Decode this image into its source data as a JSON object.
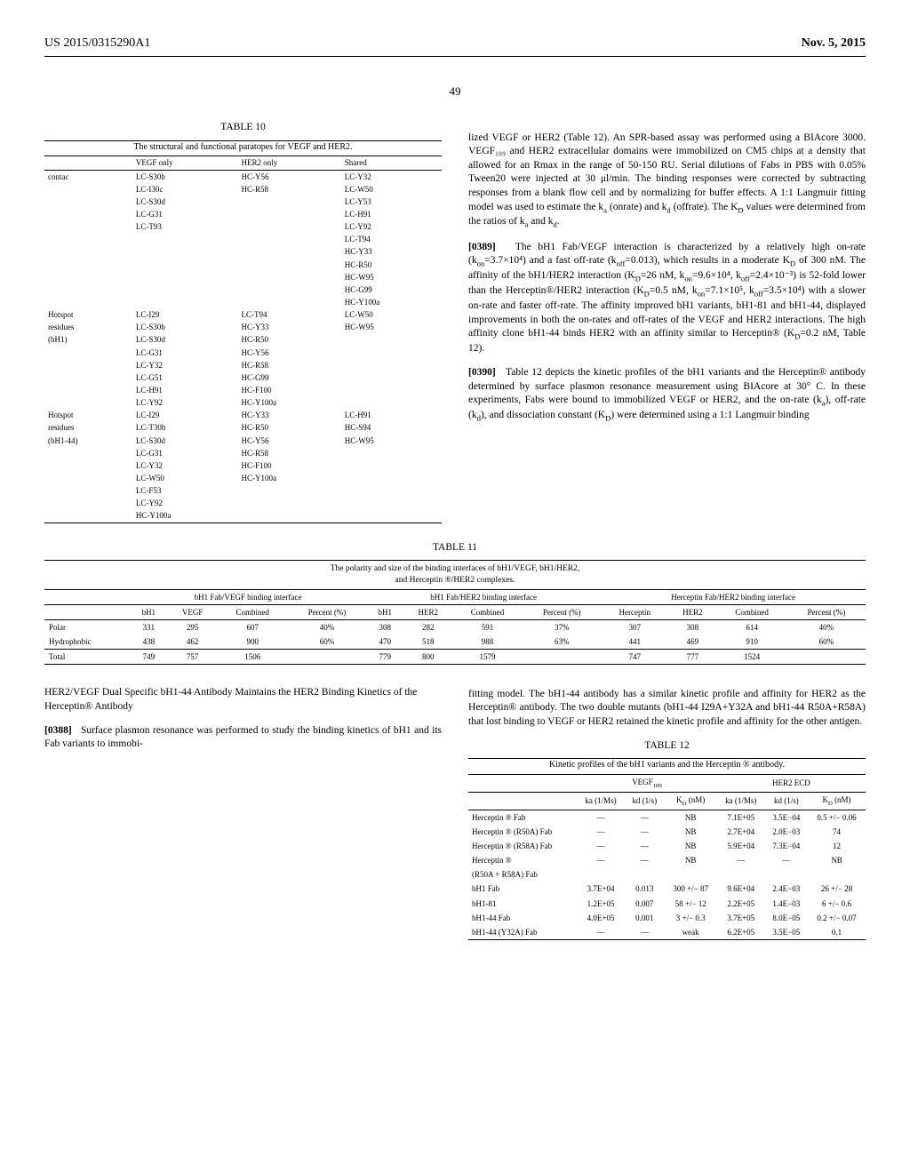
{
  "header": {
    "patent_number": "US 2015/0315290A1",
    "date": "Nov. 5, 2015"
  },
  "page_number": "49",
  "table10": {
    "title": "TABLE 10",
    "caption": "The structural and functional paratopes for VEGF and HER2.",
    "columns": [
      "",
      "VEGF only",
      "HER2 only",
      "Shared"
    ],
    "sections": [
      {
        "label": "contac",
        "rows": [
          [
            "LC-S30b",
            "HC-Y56",
            "LC-Y32"
          ],
          [
            "LC-I30c",
            "HC-R58",
            "LC-W50"
          ],
          [
            "LC-S30d",
            "",
            "LC-Y53"
          ],
          [
            "LC-G31",
            "",
            "LC-H91"
          ],
          [
            "LC-T93",
            "",
            "LC-Y92"
          ],
          [
            "",
            "",
            "LC-T94"
          ],
          [
            "",
            "",
            "HC-Y33"
          ],
          [
            "",
            "",
            "HC-R50"
          ],
          [
            "",
            "",
            "HC-W95"
          ],
          [
            "",
            "",
            "HC-G99"
          ],
          [
            "",
            "",
            "HC-Y100a"
          ]
        ]
      },
      {
        "label": "Hotspot residues (bH1)",
        "label_lines": [
          "Hotspot",
          "residues",
          "(bH1)"
        ],
        "rows": [
          [
            "LC-I29",
            "LC-T94",
            "LC-W50"
          ],
          [
            "LC-S30b",
            "HC-Y33",
            "HC-W95"
          ],
          [
            "LC-S30d",
            "HC-R50",
            ""
          ],
          [
            "LC-G31",
            "HC-Y56",
            ""
          ],
          [
            "LC-Y32",
            "HC-R58",
            ""
          ],
          [
            "LC-G51",
            "HC-G99",
            ""
          ],
          [
            "LC-H91",
            "HC-F100",
            ""
          ],
          [
            "LC-Y92",
            "HC-Y100a",
            ""
          ]
        ]
      },
      {
        "label": "Hotspot residues (bH1-44)",
        "label_lines": [
          "Hotspot",
          "residues",
          "(bH1-44)"
        ],
        "rows": [
          [
            "LC-I29",
            "HC-Y33",
            "LC-H91"
          ],
          [
            "LC-T30b",
            "HC-R50",
            "HC-S94"
          ],
          [
            "LC-S30d",
            "HC-Y56",
            "HC-W95"
          ],
          [
            "LC-G31",
            "HC-R58",
            ""
          ],
          [
            "LC-Y32",
            "HC-F100",
            ""
          ],
          [
            "LC-W50",
            "HC-Y100a",
            ""
          ],
          [
            "LC-F53",
            "",
            ""
          ],
          [
            "LC-Y92",
            "",
            ""
          ],
          [
            "HC-Y100a",
            "",
            ""
          ]
        ]
      }
    ]
  },
  "right_text": {
    "p1": "lized VEGF or HER2 (Table 12). An SPR-based assay was performed using a BIAcore 3000. VEGF₁₀₉ and HER2 extracellular domains were immobilized on CM5 chips at a density that allowed for an Rmax in the range of 50-150 RU. Serial dilutions of Fabs in PBS with 0.05% Tween20 were injected at 30 μl/min. The binding responses were corrected by subtracting responses from a blank flow cell and by normalizing for buffer effects. A 1:1 Langmuir fitting model was used to estimate the k",
    "p1b": " (onrate) and k",
    "p1c": " (offrate). The K",
    "p1d": " values were determined from the ratios of k",
    "p1e": " and k",
    "p1f": ".",
    "p2_num": "[0389]",
    "p2": " The bH1 Fab/VEGF interaction is characterized by a relatively high on-rate (k",
    "p2b": "=3.7×10⁴) and a fast off-rate (k",
    "p2c": "=0.013), which results in a moderate K",
    "p2d": " of 300 nM. The affinity of the bH1/HER2 interaction (K",
    "p2e": "=26 nM, k",
    "p2f": "=9.6×10⁴, k",
    "p2g": "=2.4×10⁻³) is 52-fold lower than the Herceptin®/HER2 interaction (K",
    "p2h": "=0.5 nM, k",
    "p2i": "=7.1×10⁵, k",
    "p2j": "=3.5×10⁴) with a slower on-rate and faster off-rate. The affinity improved bH1 variants, bH1-81 and bH1-44, displayed improvements in both the on-rates and off-rates of the VEGF and HER2 interactions. The high affinity clone bH1-44 binds HER2 with an affinity similar to Herceptin® (K",
    "p2k": "=0.2 nM, Table 12).",
    "p3_num": "[0390]",
    "p3": " Table 12 depicts the kinetic profiles of the bH1 variants and the Herceptin® antibody determined by surface plasmon resonance measurement using BIAcore at 30° C. In these experiments, Fabs were bound to immobilized VEGF or HER2, and the on-rate (k",
    "p3b": "), off-rate (k",
    "p3c": "), and dissociation constant (K",
    "p3d": ") were determined using a 1:1 Langmuir binding"
  },
  "table11": {
    "title": "TABLE 11",
    "caption_l1": "The polarity and size of the binding interfaces of bH1/VEGF, bH1/HER2,",
    "caption_l2": "and Herceptin ®/HER2 complexes.",
    "groups": [
      "bH1 Fab/VEGF binding interface",
      "bH1 Fab/HER2 binding interface",
      "Herceptin Fab/HER2 binding interface"
    ],
    "sub_g1": [
      "bH1",
      "VEGF",
      "Combined",
      "Percent (%)"
    ],
    "sub_g2": [
      "bH1",
      "HER2",
      "Combined",
      "Percent (%)"
    ],
    "sub_g3": [
      "Herceptin",
      "HER2",
      "Combined",
      "Percent (%)"
    ],
    "rows": [
      [
        "Polar",
        "331",
        "295",
        "607",
        "40%",
        "308",
        "282",
        "591",
        "37%",
        "307",
        "308",
        "614",
        "40%"
      ],
      [
        "Hydrophobic",
        "438",
        "462",
        "900",
        "60%",
        "470",
        "518",
        "988",
        "63%",
        "441",
        "469",
        "910",
        "60%"
      ]
    ],
    "total": [
      "Total",
      "749",
      "757",
      "1506",
      "",
      "779",
      "800",
      "1579",
      "",
      "747",
      "777",
      "1524",
      ""
    ]
  },
  "lower_left": {
    "heading": "HER2/VEGF Dual Specific bH1-44 Antibody Maintains the HER2 Binding Kinetics of the Herceptin® Antibody",
    "p_num": "[0388]",
    "p": " Surface plasmon resonance was performed to study the binding kinetics of bH1 and its Fab variants to immobi-"
  },
  "lower_right": {
    "p": "fitting model. The bH1-44 antibody has a similar kinetic profile and affinity for HER2 as the Herceptin® antibody. The two double mutants (bH1-44 I29A+Y32A and bH1-44 R50A+R58A) that lost binding to VEGF or HER2 retained the kinetic profile and affinity for the other antigen."
  },
  "table12": {
    "title": "TABLE 12",
    "caption": "Kinetic profiles of the bH1 variants and the Herceptin ® antibody.",
    "groups": [
      "VEGF₁₀₉",
      "HER2 ECD"
    ],
    "sub": [
      "ka (1/Ms)",
      "kd (1/s)",
      "K",
      " (nM)",
      "ka (1/Ms)",
      "kd (1/s)",
      "K",
      " (nM)"
    ],
    "rows": [
      [
        "Herceptin ® Fab",
        "—",
        "—",
        "NB",
        "7.1E+05",
        "3.5E−04",
        "0.5 +/− 0.06"
      ],
      [
        "Herceptin ® (R50A) Fab",
        "—",
        "—",
        "NB",
        "2.7E+04",
        "2.0E−03",
        "74"
      ],
      [
        "Herceptin ® (R58A) Fab",
        "—",
        "—",
        "NB",
        "5.9E+04",
        "7.3E−04",
        "12"
      ],
      [
        "Herceptin ®",
        "—",
        "—",
        "NB",
        "—",
        "—",
        "NB"
      ],
      [
        "(R50A + R58A) Fab",
        "",
        "",
        "",
        "",
        "",
        ""
      ],
      [
        "bH1 Fab",
        "3.7E+04",
        "0.013",
        "300 +/− 87",
        "9.6E+04",
        "2.4E−03",
        "26 +/− 28"
      ],
      [
        "bH1-81",
        "1.2E+05",
        "0.007",
        "58 +/− 12",
        "2.2E+05",
        "1.4E−03",
        "6 +/− 0.6"
      ],
      [
        "bH1-44 Fab",
        "4.0E+05",
        "0.001",
        "3 +/− 0.3",
        "3.7E+05",
        "8.0E−05",
        "0.2 +/− 0.07"
      ],
      [
        "bH1-44 (Y32A) Fab",
        "—",
        "—",
        "weak",
        "6.2E+05",
        "3.5E−05",
        "0.1"
      ]
    ]
  }
}
